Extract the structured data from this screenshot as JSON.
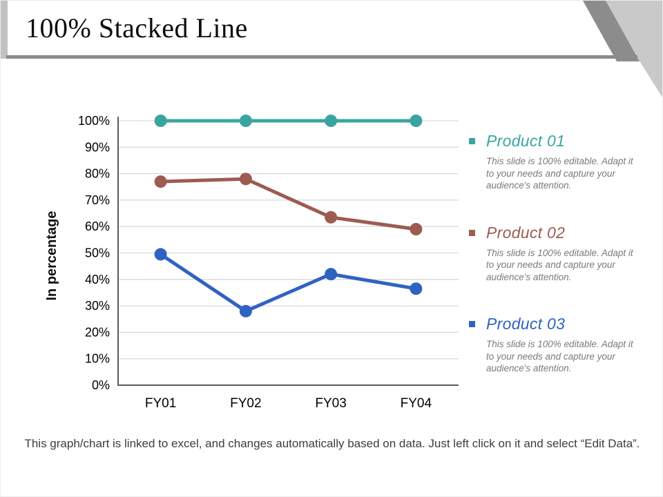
{
  "slide": {
    "title": "100% Stacked Line",
    "footer": "This graph/chart is linked to excel, and changes automatically based on data. Just left click on it and select “Edit Data”."
  },
  "legend": {
    "items": [
      {
        "label": "Product 01",
        "color": "#3aa5a0",
        "description": "This slide is 100% editable. Adapt it to your needs and capture your audience's attention."
      },
      {
        "label": "Product 02",
        "color": "#9d5b52",
        "description": "This slide is 100% editable. Adapt it to your needs and capture your audience's attention."
      },
      {
        "label": "Product 03",
        "color": "#3062c2",
        "description": "This slide is 100% editable. Adapt it to your needs and capture your audience's attention."
      }
    ]
  },
  "chart_data": {
    "type": "line",
    "title": "100% Stacked Line",
    "categories": [
      "FY01",
      "FY02",
      "FY03",
      "FY04"
    ],
    "series": [
      {
        "name": "Product 01",
        "color": "#3aa5a0",
        "values": [
          100,
          100,
          100,
          100
        ]
      },
      {
        "name": "Product 02",
        "color": "#9d5b52",
        "values": [
          77,
          78,
          63.5,
          59
        ]
      },
      {
        "name": "Product 03",
        "color": "#3062c2",
        "values": [
          49.5,
          28,
          42,
          36.5
        ]
      }
    ],
    "xlabel": "",
    "ylabel": "In percentage",
    "ylim": [
      0,
      100
    ],
    "ytick_step": 10,
    "ytick_labels": [
      "0%",
      "10%",
      "20%",
      "30%",
      "40%",
      "50%",
      "60%",
      "70%",
      "80%",
      "90%",
      "100%"
    ],
    "grid": true,
    "gridline_color": "#d9d9d9",
    "axis_color": "#595959",
    "legend_position": "right"
  }
}
